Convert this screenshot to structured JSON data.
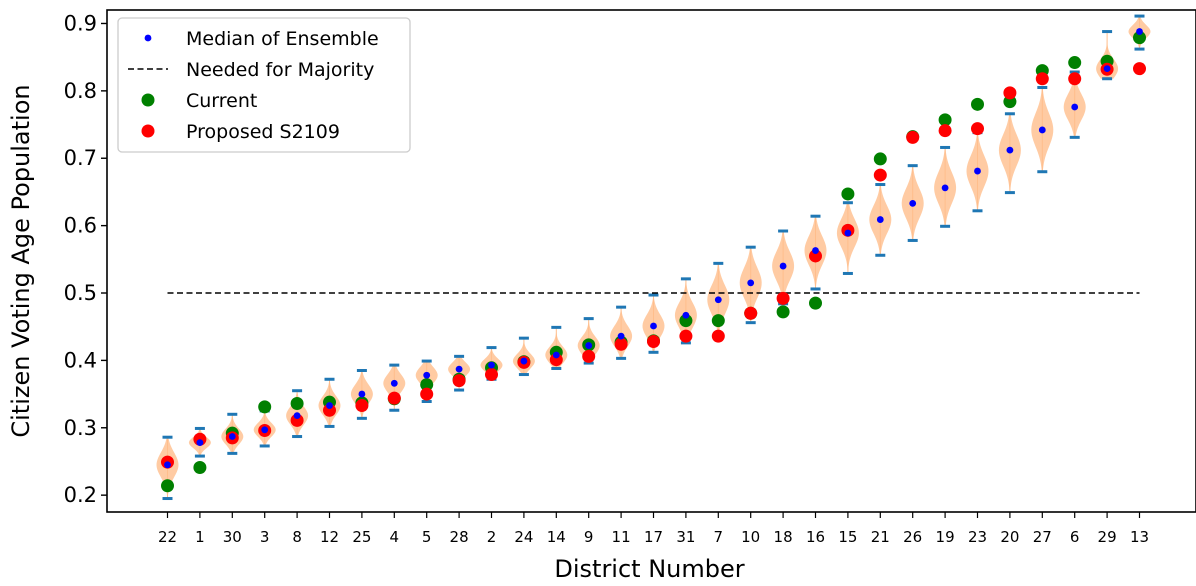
{
  "chart_data": {
    "type": "scatter",
    "title": "",
    "xlabel": "District Number",
    "ylabel": "Citizen Voting Age Population",
    "ylim": [
      0.175,
      0.92
    ],
    "y_ticks": [
      0.2,
      0.3,
      0.4,
      0.5,
      0.6,
      0.7,
      0.8,
      0.9
    ],
    "y_tick_labels": [
      "0.2",
      "0.3",
      "0.4",
      "0.5",
      "0.6",
      "0.7",
      "0.8",
      "0.9"
    ],
    "categories": [
      "22",
      "1",
      "30",
      "3",
      "8",
      "12",
      "25",
      "4",
      "5",
      "28",
      "2",
      "24",
      "14",
      "9",
      "11",
      "17",
      "31",
      "7",
      "10",
      "18",
      "16",
      "15",
      "21",
      "26",
      "19",
      "23",
      "20",
      "27",
      "6",
      "29",
      "13"
    ],
    "majority_threshold": 0.5,
    "grid": false,
    "legend_position": "upper left",
    "legend": {
      "median": "Median of Ensemble",
      "majority": "Needed for Majority",
      "current": "Current",
      "proposed": "Proposed S2109"
    },
    "colors": {
      "median": "#0000ff",
      "current": "#008000",
      "proposed": "#ff0000",
      "violin": "#ffbe8c",
      "whisker": "#1f77b4",
      "majority_line": "#000000"
    },
    "series": [
      {
        "name": "Median of Ensemble",
        "values": [
          0.245,
          0.278,
          0.287,
          0.297,
          0.318,
          0.333,
          0.35,
          0.366,
          0.378,
          0.387,
          0.393,
          0.399,
          0.408,
          0.422,
          0.436,
          0.451,
          0.467,
          0.49,
          0.515,
          0.54,
          0.563,
          0.589,
          0.609,
          0.633,
          0.656,
          0.681,
          0.712,
          0.742,
          0.776,
          0.833,
          0.888
        ]
      },
      {
        "name": "Current",
        "values": [
          0.214,
          0.241,
          0.292,
          0.331,
          0.336,
          0.338,
          0.337,
          0.343,
          0.364,
          0.372,
          0.389,
          0.398,
          0.412,
          0.423,
          0.427,
          0.429,
          0.459,
          0.459,
          0.47,
          0.472,
          0.485,
          0.647,
          0.699,
          0.732,
          0.757,
          0.78,
          0.784,
          0.83,
          0.842,
          0.844,
          0.879
        ]
      },
      {
        "name": "Proposed S2109",
        "values": [
          0.249,
          0.283,
          0.285,
          0.296,
          0.311,
          0.326,
          0.333,
          0.344,
          0.35,
          0.37,
          0.379,
          0.397,
          0.401,
          0.406,
          0.424,
          0.428,
          0.436,
          0.436,
          0.47,
          0.492,
          0.555,
          0.593,
          0.675,
          0.731,
          0.741,
          0.744,
          0.797,
          0.818,
          0.818,
          0.832,
          0.833
        ]
      }
    ],
    "ensemble_ranges": [
      [
        0.195,
        0.286
      ],
      [
        0.258,
        0.299
      ],
      [
        0.262,
        0.32
      ],
      [
        0.273,
        0.325
      ],
      [
        0.287,
        0.355
      ],
      [
        0.302,
        0.372
      ],
      [
        0.314,
        0.385
      ],
      [
        0.326,
        0.393
      ],
      [
        0.339,
        0.399
      ],
      [
        0.356,
        0.406
      ],
      [
        0.372,
        0.419
      ],
      [
        0.379,
        0.433
      ],
      [
        0.388,
        0.449
      ],
      [
        0.396,
        0.462
      ],
      [
        0.403,
        0.479
      ],
      [
        0.412,
        0.497
      ],
      [
        0.426,
        0.521
      ],
      [
        0.437,
        0.544
      ],
      [
        0.456,
        0.568
      ],
      [
        0.484,
        0.592
      ],
      [
        0.506,
        0.614
      ],
      [
        0.529,
        0.634
      ],
      [
        0.556,
        0.661
      ],
      [
        0.578,
        0.689
      ],
      [
        0.599,
        0.716
      ],
      [
        0.622,
        0.738
      ],
      [
        0.649,
        0.766
      ],
      [
        0.68,
        0.805
      ],
      [
        0.731,
        0.828
      ],
      [
        0.818,
        0.888
      ],
      [
        0.862,
        0.911
      ]
    ]
  }
}
